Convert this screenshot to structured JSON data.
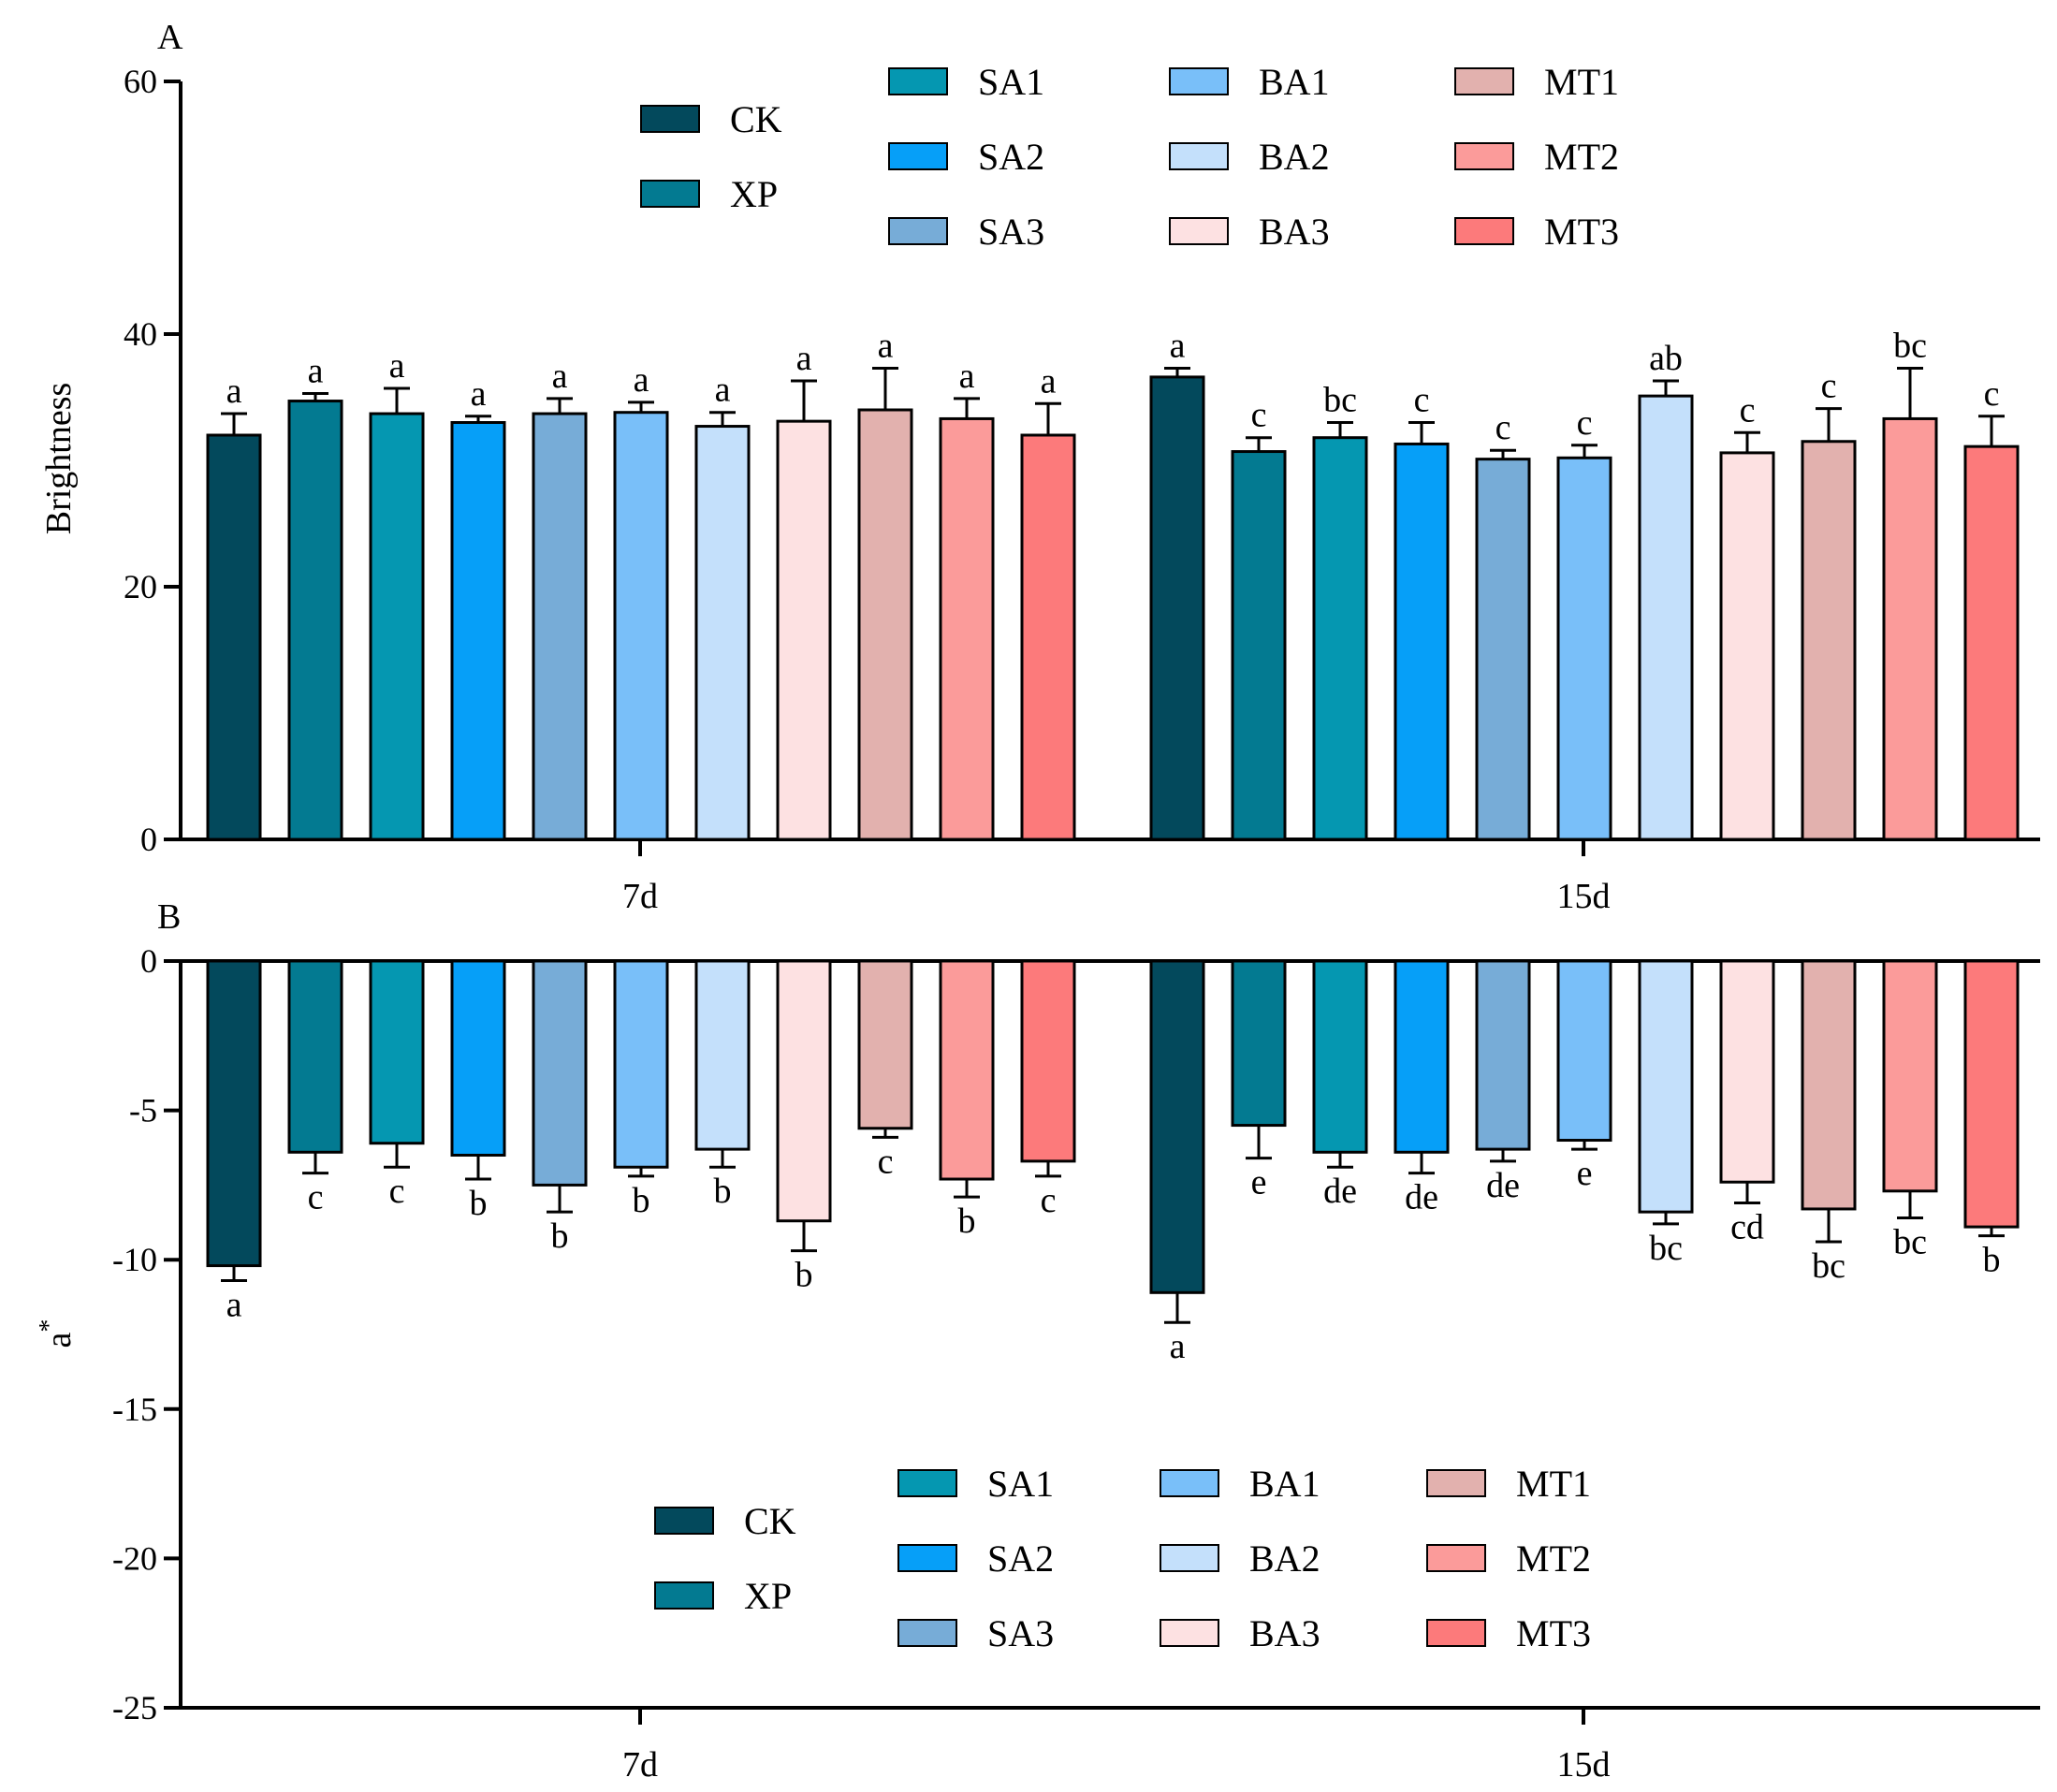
{
  "colors": {
    "CK": "#03495c",
    "XP": "#037a91",
    "SA1": "#0597b1",
    "SA2": "#069ff8",
    "SA3": "#77acd7",
    "BA1": "#79bff9",
    "BA2": "#c4e0fb",
    "BA3": "#fde1e2",
    "MT1": "#e2b1ae",
    "MT2": "#fb9b9a",
    "MT3": "#fc7a7b"
  },
  "chart_data": [
    {
      "type": "bar",
      "panel": "A",
      "ylabel": "Brightness",
      "xlabel": "",
      "ylim": [
        0,
        60
      ],
      "yticks": [
        "0",
        "20",
        "40",
        "60"
      ],
      "categories": [
        "7d",
        "15d"
      ],
      "series": [
        {
          "name": "CK",
          "values": [
            32.0,
            36.6
          ],
          "errors": [
            1.7,
            0.7
          ],
          "labels": [
            "a",
            "a"
          ]
        },
        {
          "name": "XP",
          "values": [
            34.7,
            30.7
          ],
          "errors": [
            0.6,
            1.1
          ],
          "labels": [
            "a",
            "c"
          ]
        },
        {
          "name": "SA1",
          "values": [
            33.7,
            31.8
          ],
          "errors": [
            2.0,
            1.2
          ],
          "labels": [
            "a",
            "bc"
          ]
        },
        {
          "name": "SA2",
          "values": [
            33.0,
            31.3
          ],
          "errors": [
            0.5,
            1.7
          ],
          "labels": [
            "a",
            "c"
          ]
        },
        {
          "name": "SA3",
          "values": [
            33.7,
            30.1
          ],
          "errors": [
            1.2,
            0.7
          ],
          "labels": [
            "a",
            "c"
          ]
        },
        {
          "name": "BA1",
          "values": [
            33.8,
            30.2
          ],
          "errors": [
            0.8,
            1.0
          ],
          "labels": [
            "a",
            "c"
          ]
        },
        {
          "name": "BA2",
          "values": [
            32.7,
            35.1
          ],
          "errors": [
            1.1,
            1.2
          ],
          "labels": [
            "a",
            "ab"
          ]
        },
        {
          "name": "BA3",
          "values": [
            33.1,
            30.6
          ],
          "errors": [
            3.2,
            1.6
          ],
          "labels": [
            "a",
            "c"
          ]
        },
        {
          "name": "MT1",
          "values": [
            34.0,
            31.5
          ],
          "errors": [
            3.3,
            2.6
          ],
          "labels": [
            "a",
            "c"
          ]
        },
        {
          "name": "MT2",
          "values": [
            33.3,
            33.3
          ],
          "errors": [
            1.6,
            4.0
          ],
          "labels": [
            "a",
            "bc"
          ]
        },
        {
          "name": "MT3",
          "values": [
            32.0,
            31.1
          ],
          "errors": [
            2.5,
            2.4
          ],
          "labels": [
            "a",
            "c"
          ]
        }
      ],
      "legend_position": "top-center"
    },
    {
      "type": "bar",
      "panel": "B",
      "ylabel": "a*",
      "xlabel": "",
      "ylim": [
        -25,
        0
      ],
      "yticks": [
        "-25",
        "-20",
        "-15",
        "-10",
        "-5",
        "0"
      ],
      "categories": [
        "7d",
        "15d"
      ],
      "series": [
        {
          "name": "CK",
          "values": [
            -10.2,
            -11.1
          ],
          "errors": [
            0.5,
            1.0
          ],
          "labels": [
            "a",
            "a"
          ]
        },
        {
          "name": "XP",
          "values": [
            -6.4,
            -5.5
          ],
          "errors": [
            0.7,
            1.1
          ],
          "labels": [
            "c",
            "e"
          ]
        },
        {
          "name": "SA1",
          "values": [
            -6.1,
            -6.4
          ],
          "errors": [
            0.8,
            0.5
          ],
          "labels": [
            "c",
            "de"
          ]
        },
        {
          "name": "SA2",
          "values": [
            -6.5,
            -6.4
          ],
          "errors": [
            0.8,
            0.7
          ],
          "labels": [
            "b",
            "de"
          ]
        },
        {
          "name": "SA3",
          "values": [
            -7.5,
            -6.3
          ],
          "errors": [
            0.9,
            0.4
          ],
          "labels": [
            "b",
            "de"
          ]
        },
        {
          "name": "BA1",
          "values": [
            -6.9,
            -6.0
          ],
          "errors": [
            0.3,
            0.3
          ],
          "labels": [
            "b",
            "e"
          ]
        },
        {
          "name": "BA2",
          "values": [
            -6.3,
            -8.4
          ],
          "errors": [
            0.6,
            0.4
          ],
          "labels": [
            "b",
            "bc"
          ]
        },
        {
          "name": "BA3",
          "values": [
            -8.7,
            -7.4
          ],
          "errors": [
            1.0,
            0.7
          ],
          "labels": [
            "b",
            "cd"
          ]
        },
        {
          "name": "MT1",
          "values": [
            -5.6,
            -8.3
          ],
          "errors": [
            0.3,
            1.1
          ],
          "labels": [
            "c",
            "bc"
          ]
        },
        {
          "name": "MT2",
          "values": [
            -7.3,
            -7.7
          ],
          "errors": [
            0.6,
            0.9
          ],
          "labels": [
            "b",
            "bc"
          ]
        },
        {
          "name": "MT3",
          "values": [
            -6.7,
            -8.9
          ],
          "errors": [
            0.5,
            0.3
          ],
          "labels": [
            "c",
            "b"
          ]
        }
      ],
      "legend_position": "bottom-center"
    }
  ]
}
